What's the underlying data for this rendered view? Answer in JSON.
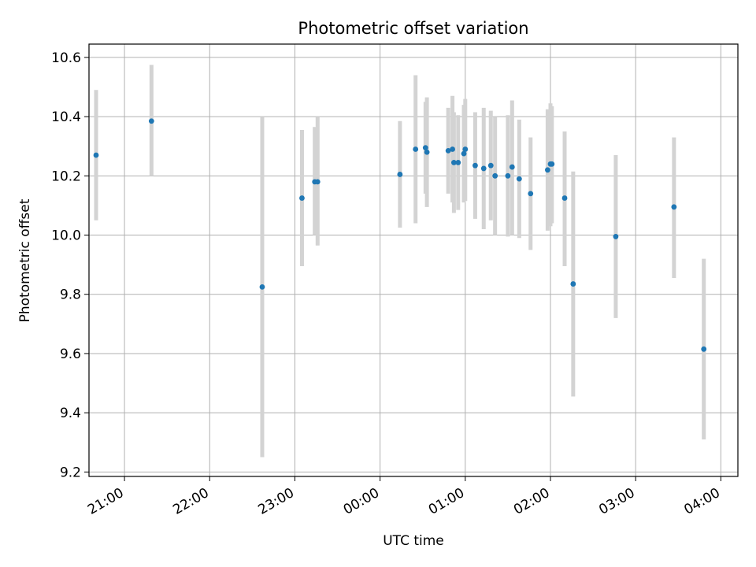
{
  "chart_data": {
    "type": "scatter",
    "title": "Photometric offset variation",
    "xlabel": "UTC time",
    "ylabel": "Photometric offset",
    "xlim": [
      "20:35",
      "04:12"
    ],
    "ylim": [
      9.185,
      10.645
    ],
    "grid": true,
    "x_ticks": [
      "21:00",
      "22:00",
      "23:00",
      "00:00",
      "01:00",
      "02:00",
      "03:00",
      "04:00"
    ],
    "y_ticks": [
      "9.2",
      "9.4",
      "9.6",
      "9.8",
      "10.0",
      "10.2",
      "10.4",
      "10.6"
    ],
    "colors": {
      "points": "#1f77b4",
      "errorbars": "#d3d3d3",
      "grid": "#b0b0b0"
    },
    "series": [
      {
        "points": [
          {
            "x": "20:40",
            "y": 10.27,
            "ylow": 10.05,
            "yhigh": 10.49
          },
          {
            "x": "21:19",
            "y": 10.385,
            "yhigh": 10.575,
            "ylow": 10.2
          },
          {
            "x": "22:37",
            "y": 9.825,
            "ylow": 9.25,
            "yhigh": 10.4
          },
          {
            "x": "23:05",
            "y": 10.125,
            "ylow": 9.895,
            "yhigh": 10.355
          },
          {
            "x": "23:14",
            "y": 10.18,
            "ylow": 10.0,
            "yhigh": 10.365
          },
          {
            "x": "23:16",
            "y": 10.18,
            "ylow": 9.965,
            "yhigh": 10.4
          },
          {
            "x": "00:14",
            "y": 10.205,
            "ylow": 10.025,
            "yhigh": 10.385
          },
          {
            "x": "00:25",
            "y": 10.29,
            "ylow": 10.04,
            "yhigh": 10.54
          },
          {
            "x": "00:32",
            "y": 10.295,
            "ylow": 10.14,
            "yhigh": 10.45
          },
          {
            "x": "00:33",
            "y": 10.28,
            "ylow": 10.095,
            "yhigh": 10.465
          },
          {
            "x": "00:48",
            "y": 10.285,
            "ylow": 10.14,
            "yhigh": 10.43
          },
          {
            "x": "00:51",
            "y": 10.29,
            "ylow": 10.11,
            "yhigh": 10.47
          },
          {
            "x": "00:52",
            "y": 10.245,
            "ylow": 10.075,
            "yhigh": 10.415
          },
          {
            "x": "00:55",
            "y": 10.245,
            "ylow": 10.085,
            "yhigh": 10.405
          },
          {
            "x": "00:59",
            "y": 10.275,
            "ylow": 10.11,
            "yhigh": 10.44
          },
          {
            "x": "01:00",
            "y": 10.29,
            "ylow": 10.115,
            "yhigh": 10.46
          },
          {
            "x": "01:07",
            "y": 10.235,
            "ylow": 10.055,
            "yhigh": 10.415
          },
          {
            "x": "01:13",
            "y": 10.225,
            "ylow": 10.02,
            "yhigh": 10.43
          },
          {
            "x": "01:18",
            "y": 10.235,
            "ylow": 10.05,
            "yhigh": 10.42
          },
          {
            "x": "01:21",
            "y": 10.2,
            "ylow": 10.0,
            "yhigh": 10.4
          },
          {
            "x": "01:30",
            "y": 10.2,
            "ylow": 9.995,
            "yhigh": 10.405
          },
          {
            "x": "01:33",
            "y": 10.23,
            "ylow": 10.0,
            "yhigh": 10.455
          },
          {
            "x": "01:38",
            "y": 10.19,
            "ylow": 9.99,
            "yhigh": 10.39
          },
          {
            "x": "01:46",
            "y": 10.14,
            "ylow": 9.95,
            "yhigh": 10.33
          },
          {
            "x": "01:58",
            "y": 10.22,
            "ylow": 10.015,
            "yhigh": 10.425
          },
          {
            "x": "02:00",
            "y": 10.24,
            "ylow": 10.03,
            "yhigh": 10.445
          },
          {
            "x": "02:01",
            "y": 10.24,
            "ylow": 10.04,
            "yhigh": 10.435
          },
          {
            "x": "02:10",
            "y": 10.125,
            "ylow": 9.895,
            "yhigh": 10.35
          },
          {
            "x": "02:16",
            "y": 9.835,
            "ylow": 9.455,
            "yhigh": 10.215
          },
          {
            "x": "02:46",
            "y": 9.995,
            "ylow": 9.72,
            "yhigh": 10.27
          },
          {
            "x": "03:27",
            "y": 10.095,
            "ylow": 9.855,
            "yhigh": 10.33
          },
          {
            "x": "03:48",
            "y": 9.615,
            "ylow": 9.31,
            "yhigh": 9.92
          }
        ]
      }
    ]
  }
}
